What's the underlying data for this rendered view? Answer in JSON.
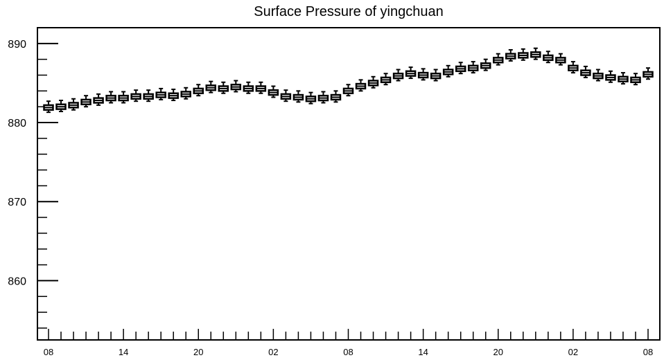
{
  "chart_data": {
    "type": "box",
    "title": "Surface Pressure of yingchuan",
    "xlabel": "",
    "ylabel": "",
    "ylim": [
      852.5,
      892
    ],
    "y_ticks": [
      860,
      870,
      880,
      890
    ],
    "x_tick_labels": [
      "08",
      "14",
      "20",
      "02",
      "08",
      "14",
      "20",
      "02",
      "08"
    ],
    "x_label_every": 6,
    "grid": false,
    "series": [
      {
        "hours_from_start": [
          0,
          1,
          2,
          3,
          4,
          5,
          6,
          7,
          8,
          9,
          10,
          11,
          12,
          13,
          14,
          15,
          16,
          17,
          18,
          19,
          20,
          21,
          22,
          23,
          24,
          25,
          26,
          27,
          28,
          29,
          30,
          31,
          32,
          33,
          34,
          35,
          36,
          37,
          38,
          39,
          40,
          41,
          42,
          43,
          44,
          45,
          46,
          47,
          48
        ],
        "median": [
          881.9,
          882.0,
          882.2,
          882.6,
          882.8,
          883.1,
          883.1,
          883.3,
          883.3,
          883.5,
          883.4,
          883.6,
          884.0,
          884.4,
          884.3,
          884.5,
          884.3,
          884.3,
          883.8,
          883.3,
          883.2,
          883.0,
          883.1,
          883.2,
          884.0,
          884.6,
          885.0,
          885.4,
          885.9,
          886.2,
          886.0,
          885.9,
          886.4,
          886.8,
          886.9,
          887.2,
          887.9,
          888.4,
          888.5,
          888.6,
          888.2,
          887.9,
          886.9,
          886.3,
          885.9,
          885.7,
          885.5,
          885.4,
          886.1
        ],
        "q1": [
          881.6,
          881.7,
          881.9,
          882.3,
          882.5,
          882.8,
          882.8,
          883.0,
          883.0,
          883.2,
          883.1,
          883.3,
          883.7,
          884.1,
          884.0,
          884.2,
          884.0,
          884.0,
          883.5,
          883.0,
          882.9,
          882.7,
          882.8,
          882.9,
          883.7,
          884.3,
          884.7,
          885.1,
          885.6,
          885.9,
          885.7,
          885.6,
          886.1,
          886.5,
          886.6,
          886.9,
          887.6,
          888.1,
          888.2,
          888.3,
          887.9,
          887.6,
          886.6,
          886.0,
          885.6,
          885.4,
          885.2,
          885.1,
          885.8
        ],
        "q3": [
          882.2,
          882.3,
          882.5,
          882.9,
          883.1,
          883.4,
          883.4,
          883.6,
          883.6,
          883.8,
          883.7,
          883.9,
          884.3,
          884.7,
          884.6,
          884.8,
          884.6,
          884.6,
          884.1,
          883.6,
          883.5,
          883.3,
          883.4,
          883.5,
          884.3,
          884.9,
          885.3,
          885.7,
          886.2,
          886.5,
          886.3,
          886.2,
          886.7,
          887.1,
          887.2,
          887.5,
          888.2,
          888.7,
          888.8,
          888.9,
          888.5,
          888.2,
          887.2,
          886.6,
          886.2,
          886.0,
          885.8,
          885.7,
          886.4
        ],
        "whisker_low": [
          881.3,
          881.4,
          881.6,
          882.0,
          882.2,
          882.5,
          882.5,
          882.7,
          882.7,
          882.9,
          882.8,
          883.0,
          883.4,
          883.8,
          883.7,
          883.9,
          883.7,
          883.7,
          883.2,
          882.7,
          882.6,
          882.4,
          882.5,
          882.6,
          883.4,
          884.0,
          884.4,
          884.8,
          885.3,
          885.6,
          885.4,
          885.3,
          885.8,
          886.2,
          886.3,
          886.6,
          887.3,
          887.8,
          887.9,
          888.0,
          887.6,
          887.3,
          886.3,
          885.7,
          885.3,
          885.1,
          884.9,
          884.8,
          885.5
        ],
        "whisker_high": [
          882.7,
          882.8,
          883.0,
          883.4,
          883.6,
          883.9,
          883.9,
          884.1,
          884.1,
          884.3,
          884.2,
          884.4,
          884.8,
          885.2,
          885.1,
          885.3,
          885.1,
          885.1,
          884.6,
          884.1,
          884.0,
          883.8,
          883.9,
          884.0,
          884.8,
          885.4,
          885.8,
          886.2,
          886.7,
          887.0,
          886.8,
          886.7,
          887.2,
          887.6,
          887.7,
          888.0,
          888.7,
          889.2,
          889.3,
          889.4,
          889.0,
          888.7,
          887.7,
          887.1,
          886.7,
          886.5,
          886.3,
          886.2,
          886.9
        ]
      }
    ]
  }
}
